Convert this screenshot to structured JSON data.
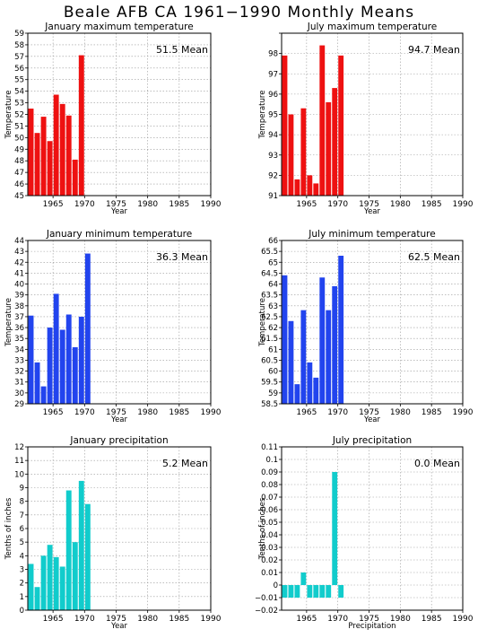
{
  "page": {
    "title": "Beale AFB CA   1961−1990  Monthly Means"
  },
  "colors": {
    "red": "#ee1111",
    "blue": "#2244ee",
    "cyan": "#11cccc"
  },
  "chart_data": [
    {
      "type": "bar",
      "title": "January maximum temperature",
      "ylabel": "Temperature",
      "xlabel": "Year",
      "mean_label": "51.5 Mean",
      "color": "red",
      "x": [
        1961,
        1962,
        1963,
        1964,
        1965,
        1966,
        1967,
        1968,
        1969,
        1970
      ],
      "values": [
        52.5,
        50.4,
        51.8,
        49.7,
        53.7,
        52.9,
        51.9,
        48.1,
        57.1,
        null
      ],
      "ylim": [
        45,
        59
      ],
      "ytick_step": 1,
      "xlim": [
        1961,
        1990
      ],
      "xticks": [
        1965,
        1970,
        1975,
        1980,
        1985,
        1990
      ],
      "yticks": [
        "45",
        "46",
        "47",
        "48",
        "49",
        "50",
        "51",
        "52",
        "53",
        "54",
        "55",
        "56",
        "57",
        "58",
        "59"
      ]
    },
    {
      "type": "bar",
      "title": "July maximum temperature",
      "ylabel": "Temperature",
      "xlabel": "Year",
      "mean_label": "94.7 Mean",
      "color": "red",
      "x": [
        1961,
        1962,
        1963,
        1964,
        1965,
        1966,
        1967,
        1968,
        1969,
        1970
      ],
      "values": [
        97.4,
        94.5,
        91.3,
        94.8,
        91.5,
        91.1,
        97.9,
        95.1,
        95.8,
        97.4
      ],
      "ylim": [
        90.5,
        98.5
      ],
      "ytick_step": 1,
      "xlim": [
        1961,
        1990
      ],
      "xticks": [
        1965,
        1970,
        1975,
        1980,
        1985,
        1990
      ],
      "yticks": [
        "91",
        "92",
        "93",
        "94",
        "95",
        "96",
        "97",
        "98"
      ]
    },
    {
      "type": "bar",
      "title": "January minimum temperature",
      "ylabel": "Temperature",
      "xlabel": "Year",
      "mean_label": "36.3 Mean",
      "color": "blue",
      "x": [
        1961,
        1962,
        1963,
        1964,
        1965,
        1966,
        1967,
        1968,
        1969,
        1970
      ],
      "values": [
        37.1,
        32.8,
        30.6,
        36.0,
        39.1,
        35.8,
        37.2,
        34.2,
        37.0,
        42.8
      ],
      "ylim": [
        29,
        44
      ],
      "ytick_step": 1,
      "xlim": [
        1961,
        1990
      ],
      "xticks": [
        1965,
        1970,
        1975,
        1980,
        1985,
        1990
      ],
      "yticks": [
        "29",
        "30",
        "31",
        "32",
        "33",
        "34",
        "35",
        "36",
        "37",
        "38",
        "39",
        "40",
        "41",
        "42",
        "43",
        "44"
      ]
    },
    {
      "type": "bar",
      "title": "July minimum temperature",
      "ylabel": "Temperature",
      "xlabel": "Year",
      "mean_label": "62.5 Mean",
      "color": "blue",
      "x": [
        1961,
        1962,
        1963,
        1964,
        1965,
        1966,
        1967,
        1968,
        1969,
        1970
      ],
      "values": [
        64.4,
        62.3,
        59.4,
        62.8,
        60.4,
        59.7,
        64.3,
        62.8,
        63.9,
        65.3
      ],
      "ylim": [
        58.5,
        66
      ],
      "ytick_step": 0.5,
      "xlim": [
        1961,
        1990
      ],
      "xticks": [
        1965,
        1970,
        1975,
        1980,
        1985,
        1990
      ],
      "yticks": [
        "58.5",
        "59",
        "59.5",
        "60",
        "60.5",
        "61",
        "61.5",
        "62",
        "62.5",
        "63",
        "63.5",
        "64",
        "64.5",
        "65",
        "65.5",
        "66"
      ]
    },
    {
      "type": "bar",
      "title": "January precipitation",
      "ylabel": "Tenths of inches",
      "xlabel": "Year",
      "mean_label": "5.2 Mean",
      "color": "cyan",
      "x": [
        1961,
        1962,
        1963,
        1964,
        1965,
        1966,
        1967,
        1968,
        1969,
        1970
      ],
      "values": [
        3.4,
        1.7,
        4.0,
        4.8,
        3.9,
        3.2,
        8.8,
        5.0,
        9.5,
        7.8
      ],
      "ylim": [
        0,
        12
      ],
      "ytick_step": 1,
      "xlim": [
        1961,
        1990
      ],
      "xticks": [
        1965,
        1970,
        1975,
        1980,
        1985,
        1990
      ],
      "yticks": [
        "0",
        "1",
        "2",
        "3",
        "4",
        "5",
        "6",
        "7",
        "8",
        "9",
        "10",
        "11",
        "12"
      ]
    },
    {
      "type": "bar",
      "title": "July precipitation",
      "ylabel": "Tenths of inches",
      "xlabel": "Precipitation",
      "mean_label": "0.0 Mean",
      "color": "cyan",
      "x": [
        1961,
        1962,
        1963,
        1964,
        1965,
        1966,
        1967,
        1968,
        1969,
        1970
      ],
      "values": [
        -0.01,
        -0.01,
        -0.01,
        0.01,
        -0.01,
        -0.01,
        -0.01,
        -0.01,
        0.09,
        -0.01
      ],
      "ylim": [
        -0.02,
        0.11
      ],
      "ytick_step": 0.01,
      "xlim": [
        1961,
        1990
      ],
      "xticks": [
        1965,
        1970,
        1975,
        1980,
        1985,
        1990
      ],
      "yticks": [
        "−0.02",
        "−0.01",
        "0",
        "0.01",
        "0.02",
        "0.03",
        "0.04",
        "0.05",
        "0.06",
        "0.07",
        "0.08",
        "0.09",
        "0.1",
        "0.11"
      ]
    }
  ]
}
